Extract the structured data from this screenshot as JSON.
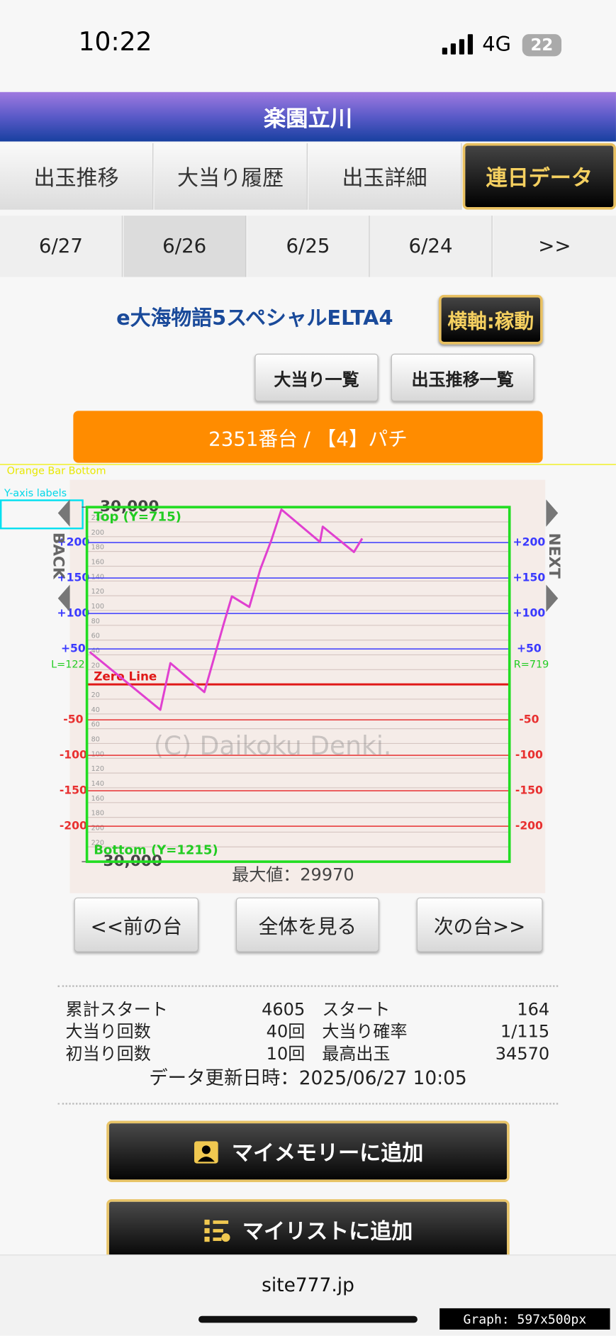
{
  "status_bar": {
    "time": "10:22",
    "network": "4G",
    "battery": "22"
  },
  "header": {
    "title": "楽園立川"
  },
  "tabs": [
    "出玉推移",
    "大当り履歴",
    "出玉詳細",
    "連日データ"
  ],
  "dates": [
    "6/27",
    "6/26",
    "6/25",
    "6/24",
    ">>"
  ],
  "machine": {
    "name": "e大海物語5スペシャルELTA4",
    "axis_button": "横軸:稼動",
    "buttons": [
      "大当り一覧",
      "出玉推移一覧"
    ],
    "unit_bar": "2351番台 / 【4】パチ"
  },
  "chart_data": {
    "type": "line",
    "series": [
      {
        "color": "#e040d0",
        "x": [
          30,
          800,
          910,
          1280,
          1490,
          1580,
          1770,
          1890,
          2010,
          2120,
          2540,
          2570,
          2910,
          3000
        ],
        "values": [
          5500,
          -4300,
          3600,
          -1300,
          10200,
          14900,
          13100,
          19500,
          24400,
          29600,
          24100,
          26700,
          22400,
          24700
        ]
      }
    ],
    "xlim": [
      0,
      4605
    ],
    "ylim": [
      -30000,
      30000
    ],
    "yticks": [
      {
        "value": 30000,
        "label": "30,000"
      },
      {
        "value": -30000,
        "label": "-30,000"
      }
    ],
    "minor_ylim": [
      -240,
      240
    ],
    "minor_yticks": [
      220,
      200,
      180,
      160,
      140,
      120,
      100,
      80,
      60,
      40,
      20,
      {
        "value": -20,
        "label": "20"
      },
      {
        "value": -40,
        "label": "40"
      },
      {
        "value": -60,
        "label": "60"
      },
      {
        "value": -80,
        "label": "80"
      },
      {
        "value": -100,
        "label": "100"
      },
      {
        "value": -120,
        "label": "120"
      },
      {
        "value": -140,
        "label": "140"
      },
      {
        "value": -160,
        "label": "160"
      },
      {
        "value": -180,
        "label": "180"
      },
      {
        "value": -200,
        "label": "200"
      },
      {
        "value": -220,
        "label": "220"
      }
    ],
    "max_label": "最大値：29970",
    "watermark": "(C) Daikoku Denki.",
    "back": "BACK",
    "next": "NEXT",
    "overlay": {
      "ylim": [
        -250,
        250
      ],
      "lines": [
        {
          "value": 200,
          "label": "+200",
          "color": "#3a3aff"
        },
        {
          "value": 150,
          "label": "+150",
          "color": "#3a3aff"
        },
        {
          "value": 100,
          "label": "+100",
          "color": "#3a3aff"
        },
        {
          "value": 50,
          "label": "+50",
          "color": "#3a3aff"
        },
        {
          "value": -50,
          "label": "-50",
          "color": "#e83030"
        },
        {
          "value": -100,
          "label": "-100",
          "color": "#e83030"
        },
        {
          "value": -150,
          "label": "-150",
          "color": "#e83030"
        },
        {
          "value": -200,
          "label": "-200",
          "color": "#e83030"
        }
      ],
      "zero_label": "Zero Line",
      "top_label": "Top (Y=715)",
      "bottom_label": "Bottom (Y=1215)",
      "left_label": "L=122",
      "right_label": "R=719",
      "orange_label": "Orange Bar Bottom",
      "yaxis_label": "Y-axis labels",
      "size_label": "Graph: 597x500px"
    }
  },
  "nav_buttons": [
    "<<前の台",
    "全体を見る",
    "次の台>>"
  ],
  "stats": [
    [
      "累計スタート",
      "4605",
      "スタート",
      "164"
    ],
    [
      "大当り回数",
      "40回",
      "大当り確率",
      "1/115"
    ],
    [
      "初当り回数",
      "10回",
      "最高出玉",
      "34570"
    ]
  ],
  "updated": "データ更新日時：2025/06/27 10:05",
  "actions": [
    "マイメモリーに追加",
    "マイリストに追加"
  ],
  "footer": {
    "url": "site777.jp"
  }
}
